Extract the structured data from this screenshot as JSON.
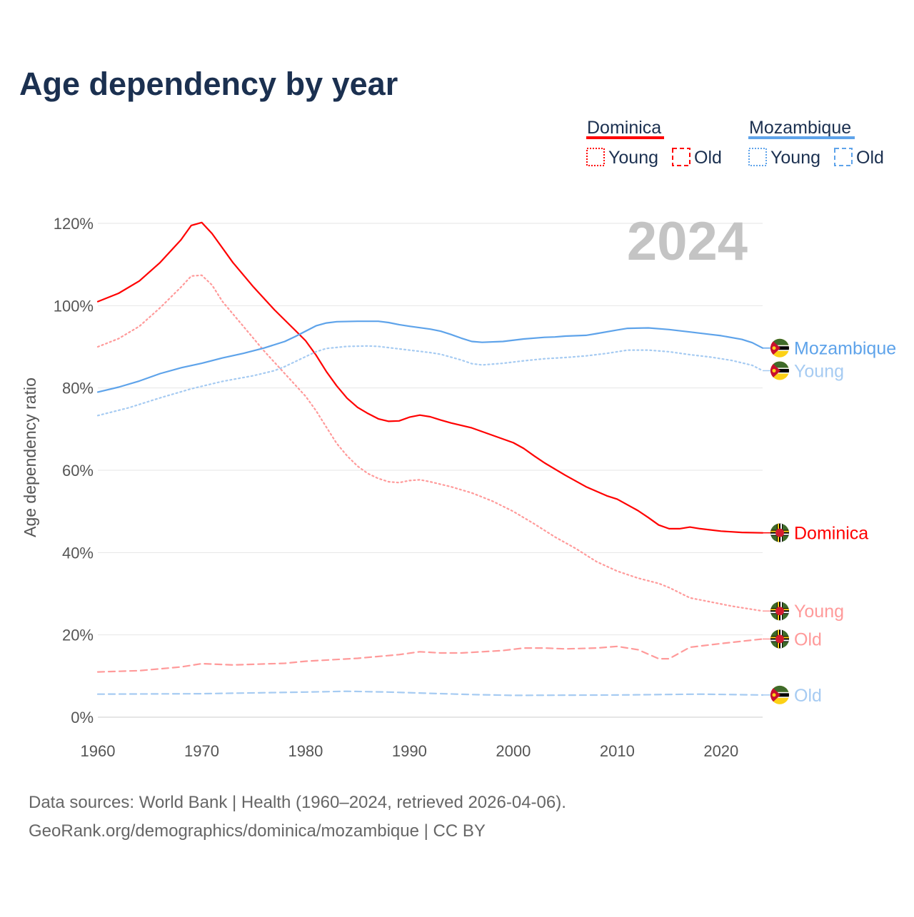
{
  "title": "Age dependency by year",
  "current_year": "2024",
  "legend": {
    "groups": [
      {
        "name": "Dominica",
        "color": "#ff0000",
        "young": "Young",
        "old": "Old"
      },
      {
        "name": "Mozambique",
        "color": "#5ea3ea",
        "young": "Young",
        "old": "Old"
      }
    ]
  },
  "footer": {
    "line1": "Data sources: World Bank | Health (1960–2024, retrieved 2026-04-06).",
    "line2": "GeoRank.org/demographics/dominica/mozambique | CC BY"
  },
  "chart_data": {
    "type": "line",
    "title": "Age dependency by year",
    "xlabel": "",
    "ylabel": "Age dependency ratio",
    "xlim": [
      1960,
      2024
    ],
    "ylim": [
      0,
      120
    ],
    "xticks": [
      1960,
      1970,
      1980,
      1990,
      2000,
      2010,
      2020
    ],
    "yticks": [
      0,
      20,
      40,
      60,
      80,
      100,
      120
    ],
    "ytick_labels": [
      "0%",
      "20%",
      "40%",
      "60%",
      "80%",
      "100%",
      "120%"
    ],
    "xtick_labels": [
      "1960",
      "1970",
      "1980",
      "1990",
      "2000",
      "2010",
      "2020"
    ],
    "grid": true,
    "series": [
      {
        "name": "Dominica",
        "label": "Dominica",
        "country": "dominica",
        "style": "solid",
        "color": "#ff0000",
        "points": [
          [
            1960,
            101
          ],
          [
            1962,
            103
          ],
          [
            1964,
            106
          ],
          [
            1966,
            110.5
          ],
          [
            1968,
            116
          ],
          [
            1969,
            119.5
          ],
          [
            1970,
            120.2
          ],
          [
            1971,
            117.5
          ],
          [
            1972,
            114
          ],
          [
            1973,
            110.5
          ],
          [
            1975,
            104.5
          ],
          [
            1977,
            99
          ],
          [
            1979,
            94
          ],
          [
            1980,
            91.5
          ],
          [
            1981,
            88
          ],
          [
            1982,
            84
          ],
          [
            1983,
            80.5
          ],
          [
            1984,
            77.5
          ],
          [
            1985,
            75.3
          ],
          [
            1986,
            73.8
          ],
          [
            1987,
            72.5
          ],
          [
            1988,
            71.9
          ],
          [
            1989,
            72
          ],
          [
            1990,
            72.9
          ],
          [
            1991,
            73.4
          ],
          [
            1992,
            73
          ],
          [
            1993,
            72.2
          ],
          [
            1994,
            71.5
          ],
          [
            1996,
            70.3
          ],
          [
            1998,
            68.5
          ],
          [
            2000,
            66.7
          ],
          [
            2001,
            65.3
          ],
          [
            2002,
            63.5
          ],
          [
            2003,
            61.8
          ],
          [
            2005,
            58.8
          ],
          [
            2007,
            56
          ],
          [
            2009,
            53.8
          ],
          [
            2010,
            53
          ],
          [
            2012,
            50.2
          ],
          [
            2013,
            48.5
          ],
          [
            2014,
            46.7
          ],
          [
            2015,
            45.8
          ],
          [
            2016,
            45.8
          ],
          [
            2017,
            46.2
          ],
          [
            2018,
            45.8
          ],
          [
            2020,
            45.2
          ],
          [
            2022,
            44.9
          ],
          [
            2024,
            44.8
          ]
        ]
      },
      {
        "name": "Dominica Young",
        "label": "Young",
        "country": "dominica",
        "style": "dotted",
        "color": "#ff9a9a",
        "points": [
          [
            1960,
            90
          ],
          [
            1962,
            92
          ],
          [
            1964,
            95
          ],
          [
            1966,
            99.5
          ],
          [
            1968,
            104.5
          ],
          [
            1969,
            107.2
          ],
          [
            1970,
            107.4
          ],
          [
            1971,
            105
          ],
          [
            1972,
            101
          ],
          [
            1974,
            95
          ],
          [
            1976,
            89
          ],
          [
            1978,
            83.5
          ],
          [
            1980,
            78
          ],
          [
            1981,
            74.5
          ],
          [
            1982,
            70.5
          ],
          [
            1983,
            66.5
          ],
          [
            1984,
            63.5
          ],
          [
            1985,
            61
          ],
          [
            1986,
            59.2
          ],
          [
            1987,
            58
          ],
          [
            1988,
            57.2
          ],
          [
            1989,
            57
          ],
          [
            1990,
            57.5
          ],
          [
            1991,
            57.7
          ],
          [
            1992,
            57.2
          ],
          [
            1994,
            56
          ],
          [
            1996,
            54.5
          ],
          [
            1998,
            52.5
          ],
          [
            2000,
            50
          ],
          [
            2002,
            47
          ],
          [
            2004,
            43.8
          ],
          [
            2006,
            41
          ],
          [
            2008,
            37.8
          ],
          [
            2010,
            35.5
          ],
          [
            2012,
            33.8
          ],
          [
            2014,
            32.5
          ],
          [
            2015,
            31.5
          ],
          [
            2017,
            29
          ],
          [
            2019,
            28
          ],
          [
            2021,
            27
          ],
          [
            2024,
            25.8
          ]
        ]
      },
      {
        "name": "Dominica Old",
        "label": "Old",
        "country": "dominica",
        "style": "dashed",
        "color": "#ff9a9a",
        "points": [
          [
            1960,
            11
          ],
          [
            1964,
            11.3
          ],
          [
            1968,
            12.2
          ],
          [
            1970,
            13
          ],
          [
            1973,
            12.7
          ],
          [
            1978,
            13.1
          ],
          [
            1980,
            13.6
          ],
          [
            1985,
            14.3
          ],
          [
            1989,
            15.2
          ],
          [
            1991,
            15.9
          ],
          [
            1993,
            15.6
          ],
          [
            1995,
            15.6
          ],
          [
            1999,
            16.2
          ],
          [
            2001,
            16.8
          ],
          [
            2003,
            16.8
          ],
          [
            2005,
            16.6
          ],
          [
            2008,
            16.8
          ],
          [
            2010,
            17.2
          ],
          [
            2012,
            16.4
          ],
          [
            2014,
            14.2
          ],
          [
            2015,
            14.2
          ],
          [
            2017,
            17
          ],
          [
            2020,
            17.9
          ],
          [
            2024,
            19
          ]
        ]
      },
      {
        "name": "Mozambique",
        "label": "Mozambique",
        "country": "mozambique",
        "style": "solid",
        "color": "#5ea3ea",
        "points": [
          [
            1960,
            79
          ],
          [
            1962,
            80.2
          ],
          [
            1964,
            81.7
          ],
          [
            1966,
            83.5
          ],
          [
            1968,
            84.9
          ],
          [
            1970,
            86
          ],
          [
            1972,
            87.3
          ],
          [
            1974,
            88.4
          ],
          [
            1976,
            89.7
          ],
          [
            1978,
            91.3
          ],
          [
            1979,
            92.5
          ],
          [
            1980,
            93.8
          ],
          [
            1981,
            95.1
          ],
          [
            1982,
            95.8
          ],
          [
            1983,
            96.1
          ],
          [
            1985,
            96.2
          ],
          [
            1987,
            96.2
          ],
          [
            1988,
            95.9
          ],
          [
            1989,
            95.4
          ],
          [
            1990,
            95
          ],
          [
            1992,
            94.3
          ],
          [
            1993,
            93.8
          ],
          [
            1994,
            93
          ],
          [
            1995,
            92.1
          ],
          [
            1996,
            91.3
          ],
          [
            1997,
            91.1
          ],
          [
            1999,
            91.3
          ],
          [
            2001,
            91.9
          ],
          [
            2003,
            92.3
          ],
          [
            2004,
            92.4
          ],
          [
            2005,
            92.6
          ],
          [
            2007,
            92.8
          ],
          [
            2008,
            93.2
          ],
          [
            2010,
            94.1
          ],
          [
            2011,
            94.5
          ],
          [
            2013,
            94.6
          ],
          [
            2015,
            94.2
          ],
          [
            2017,
            93.6
          ],
          [
            2019,
            93
          ],
          [
            2020,
            92.7
          ],
          [
            2022,
            91.8
          ],
          [
            2023,
            91
          ],
          [
            2024,
            89.7
          ]
        ]
      },
      {
        "name": "Mozambique Young",
        "label": "Young",
        "country": "mozambique",
        "style": "dotted",
        "color": "#a6cbf2",
        "points": [
          [
            1960,
            73.3
          ],
          [
            1963,
            75.2
          ],
          [
            1966,
            77.6
          ],
          [
            1969,
            79.8
          ],
          [
            1972,
            81.6
          ],
          [
            1975,
            83
          ],
          [
            1977,
            84.2
          ],
          [
            1978,
            85.2
          ],
          [
            1980,
            87.6
          ],
          [
            1981,
            88.8
          ],
          [
            1982,
            89.6
          ],
          [
            1984,
            90.1
          ],
          [
            1986,
            90.2
          ],
          [
            1987,
            90.1
          ],
          [
            1989,
            89.5
          ],
          [
            1992,
            88.6
          ],
          [
            1993,
            88.2
          ],
          [
            1995,
            86.8
          ],
          [
            1996,
            85.9
          ],
          [
            1997,
            85.6
          ],
          [
            1999,
            86
          ],
          [
            2001,
            86.6
          ],
          [
            2003,
            87.1
          ],
          [
            2005,
            87.4
          ],
          [
            2007,
            87.8
          ],
          [
            2009,
            88.4
          ],
          [
            2011,
            89.2
          ],
          [
            2013,
            89.2
          ],
          [
            2015,
            88.8
          ],
          [
            2017,
            88.1
          ],
          [
            2019,
            87.5
          ],
          [
            2021,
            86.7
          ],
          [
            2023,
            85.5
          ],
          [
            2024,
            84.2
          ]
        ]
      },
      {
        "name": "Mozambique Old",
        "label": "Old",
        "country": "mozambique",
        "style": "dashed",
        "color": "#a6cbf2",
        "points": [
          [
            1960,
            5.6
          ],
          [
            1970,
            5.7
          ],
          [
            1980,
            6.1
          ],
          [
            1984,
            6.3
          ],
          [
            1988,
            6.1
          ],
          [
            1992,
            5.8
          ],
          [
            1996,
            5.5
          ],
          [
            2000,
            5.3
          ],
          [
            2010,
            5.4
          ],
          [
            2018,
            5.6
          ],
          [
            2024,
            5.4
          ]
        ]
      }
    ]
  }
}
